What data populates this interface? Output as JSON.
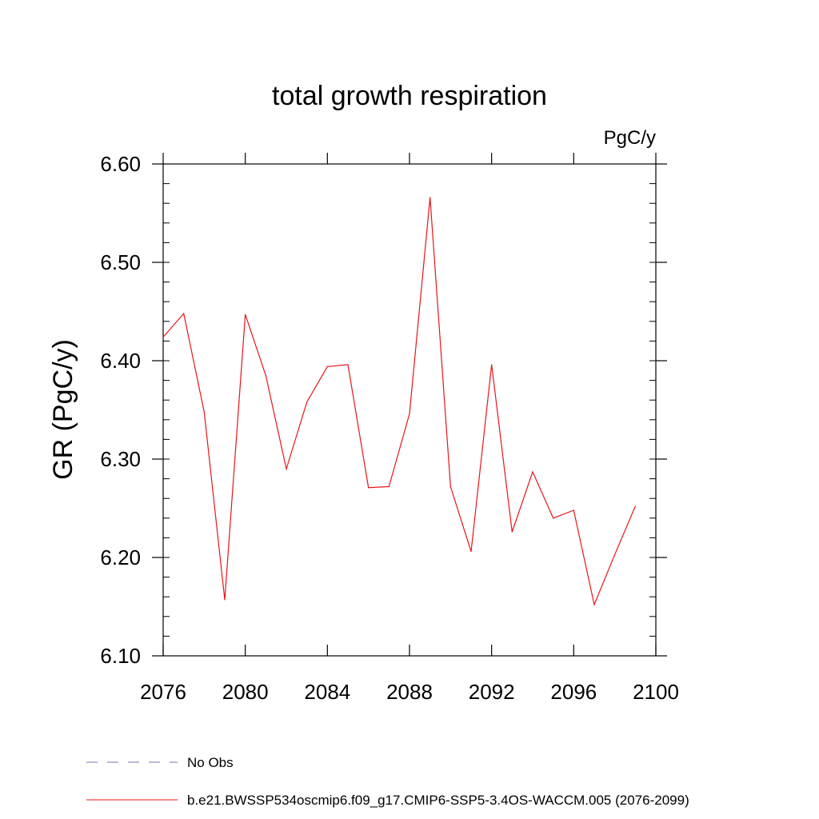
{
  "chart_data": {
    "type": "line",
    "title": "total growth respiration",
    "units_label": "PgC/y",
    "xlabel": "",
    "ylabel": "GR  (PgC/y)",
    "xlim": [
      2076,
      2100
    ],
    "ylim": [
      6.1,
      6.6
    ],
    "x_ticks": [
      2076,
      2080,
      2084,
      2088,
      2092,
      2096,
      2100
    ],
    "x_tick_labels": [
      "2076",
      "2080",
      "2084",
      "2088",
      "2092",
      "2096",
      "2100"
    ],
    "y_ticks": [
      6.1,
      6.2,
      6.3,
      6.4,
      6.5,
      6.6
    ],
    "y_tick_labels": [
      "6.10",
      "6.20",
      "6.30",
      "6.40",
      "6.50",
      "6.60"
    ],
    "grid": false,
    "legend_position": "bottom",
    "series": [
      {
        "name": "b.e21.BWSSP534oscmip6.f09_g17.CMIP6-SSP5-3.4OS-WACCM.005 (2076-2099)",
        "color": "#e8141a",
        "x": [
          2076,
          2077,
          2078,
          2079,
          2080,
          2081,
          2082,
          2083,
          2084,
          2085,
          2086,
          2087,
          2088,
          2089,
          2090,
          2091,
          2092,
          2093,
          2094,
          2095,
          2096,
          2097,
          2098,
          2099
        ],
        "values": [
          6.424,
          6.448,
          6.348,
          6.157,
          6.447,
          6.385,
          6.29,
          6.358,
          6.394,
          6.396,
          6.271,
          6.272,
          6.346,
          6.566,
          6.272,
          6.206,
          6.396,
          6.226,
          6.287,
          6.24,
          6.248,
          6.152,
          6.203,
          6.252
        ]
      }
    ],
    "legend": [
      {
        "label": "No Obs",
        "style": "dashed",
        "color": "#7b6fb0"
      },
      {
        "label": "b.e21.BWSSP534oscmip6.f09_g17.CMIP6-SSP5-3.4OS-WACCM.005 (2076-2099)",
        "style": "solid",
        "color": "#e8141a"
      }
    ]
  }
}
